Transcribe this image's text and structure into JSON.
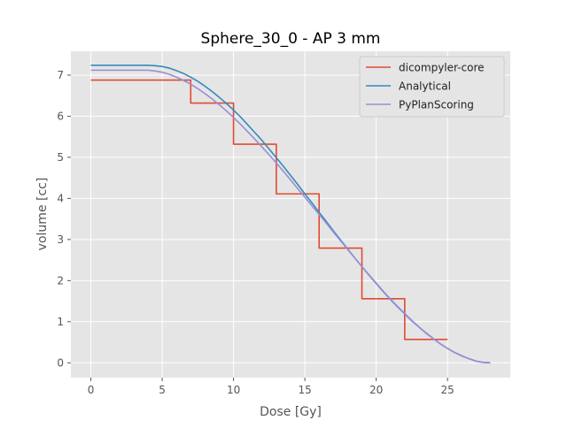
{
  "chart_data": {
    "type": "line",
    "title": "Sphere_30_0 - AP 3 mm",
    "xlabel": "Dose [Gy]",
    "ylabel": "volume [cc]",
    "xlim": [
      -1.4,
      29.4
    ],
    "ylim": [
      -0.36,
      7.58
    ],
    "x_ticks": [
      0,
      5,
      10,
      15,
      20,
      25
    ],
    "y_ticks": [
      0,
      1,
      2,
      3,
      4,
      5,
      6,
      7
    ],
    "grid": true,
    "legend_position": "top-right",
    "series": [
      {
        "name": "dicompyler-core",
        "color": "#e24a33",
        "style": "step",
        "points": [
          [
            0,
            6.88
          ],
          [
            7,
            6.88
          ],
          [
            7,
            6.32
          ],
          [
            10,
            6.32
          ],
          [
            10,
            5.32
          ],
          [
            13,
            5.32
          ],
          [
            13,
            4.11
          ],
          [
            16,
            4.11
          ],
          [
            16,
            2.79
          ],
          [
            19,
            2.79
          ],
          [
            19,
            1.56
          ],
          [
            22,
            1.56
          ],
          [
            22,
            0.57
          ],
          [
            25,
            0.57
          ]
        ]
      },
      {
        "name": "Analytical",
        "color": "#348abd",
        "style": "line",
        "points": [
          [
            0,
            7.24
          ],
          [
            4,
            7.24
          ],
          [
            4.5,
            7.23
          ],
          [
            5,
            7.21
          ],
          [
            5.5,
            7.17
          ],
          [
            6,
            7.11
          ],
          [
            6.5,
            7.04
          ],
          [
            7,
            6.95
          ],
          [
            7.5,
            6.85
          ],
          [
            8,
            6.73
          ],
          [
            8.5,
            6.6
          ],
          [
            9,
            6.46
          ],
          [
            9.5,
            6.31
          ],
          [
            10,
            6.15
          ],
          [
            10.5,
            5.98
          ],
          [
            11,
            5.79
          ],
          [
            11.5,
            5.6
          ],
          [
            12,
            5.41
          ],
          [
            12.5,
            5.2
          ],
          [
            13,
            4.99
          ],
          [
            13.5,
            4.78
          ],
          [
            14,
            4.56
          ],
          [
            14.5,
            4.34
          ],
          [
            15,
            4.11
          ],
          [
            15.5,
            3.89
          ],
          [
            16,
            3.66
          ],
          [
            16.5,
            3.44
          ],
          [
            17,
            3.21
          ],
          [
            17.5,
            2.99
          ],
          [
            18,
            2.77
          ],
          [
            18.5,
            2.55
          ],
          [
            19,
            2.34
          ],
          [
            19.5,
            2.13
          ],
          [
            20,
            1.93
          ],
          [
            20.5,
            1.73
          ],
          [
            21,
            1.54
          ],
          [
            21.5,
            1.36
          ],
          [
            22,
            1.19
          ],
          [
            22.5,
            1.02
          ],
          [
            23,
            0.87
          ],
          [
            23.5,
            0.72
          ],
          [
            24,
            0.59
          ],
          [
            24.5,
            0.46
          ],
          [
            25,
            0.35
          ],
          [
            25.5,
            0.25
          ],
          [
            26,
            0.17
          ],
          [
            26.5,
            0.1
          ],
          [
            27,
            0.04
          ],
          [
            27.5,
            0.01
          ],
          [
            28,
            0.0
          ]
        ]
      },
      {
        "name": "PyPlanScoring",
        "color": "#988ed5",
        "style": "line",
        "points": [
          [
            0,
            7.12
          ],
          [
            4,
            7.12
          ],
          [
            4.5,
            7.1
          ],
          [
            5,
            7.07
          ],
          [
            5.5,
            7.02
          ],
          [
            6,
            6.95
          ],
          [
            6.5,
            6.87
          ],
          [
            7,
            6.78
          ],
          [
            7.5,
            6.67
          ],
          [
            8,
            6.55
          ],
          [
            8.5,
            6.42
          ],
          [
            9,
            6.28
          ],
          [
            9.5,
            6.13
          ],
          [
            10,
            5.97
          ],
          [
            10.5,
            5.8
          ],
          [
            11,
            5.62
          ],
          [
            11.5,
            5.44
          ],
          [
            12,
            5.25
          ],
          [
            12.5,
            5.06
          ],
          [
            13,
            4.86
          ],
          [
            13.5,
            4.66
          ],
          [
            14,
            4.45
          ],
          [
            14.5,
            4.24
          ],
          [
            15,
            4.03
          ],
          [
            15.5,
            3.82
          ],
          [
            16,
            3.61
          ],
          [
            16.5,
            3.4
          ],
          [
            17,
            3.18
          ],
          [
            17.5,
            2.97
          ],
          [
            18,
            2.76
          ],
          [
            18.5,
            2.55
          ],
          [
            19,
            2.34
          ],
          [
            19.5,
            2.14
          ],
          [
            20,
            1.94
          ],
          [
            20.5,
            1.74
          ],
          [
            21,
            1.55
          ],
          [
            21.5,
            1.37
          ],
          [
            22,
            1.2
          ],
          [
            22.5,
            1.03
          ],
          [
            23,
            0.87
          ],
          [
            23.5,
            0.73
          ],
          [
            24,
            0.59
          ],
          [
            24.5,
            0.46
          ],
          [
            25,
            0.35
          ],
          [
            25.5,
            0.25
          ],
          [
            26,
            0.17
          ],
          [
            26.5,
            0.1
          ],
          [
            27,
            0.04
          ],
          [
            27.5,
            0.01
          ],
          [
            28,
            0.0
          ]
        ]
      }
    ]
  },
  "style": {
    "plot_background": "#e5e5e5",
    "grid_color": "#ffffff",
    "text_color": "#555555",
    "title_color": "#000000",
    "legend_border": "#cccccc"
  }
}
